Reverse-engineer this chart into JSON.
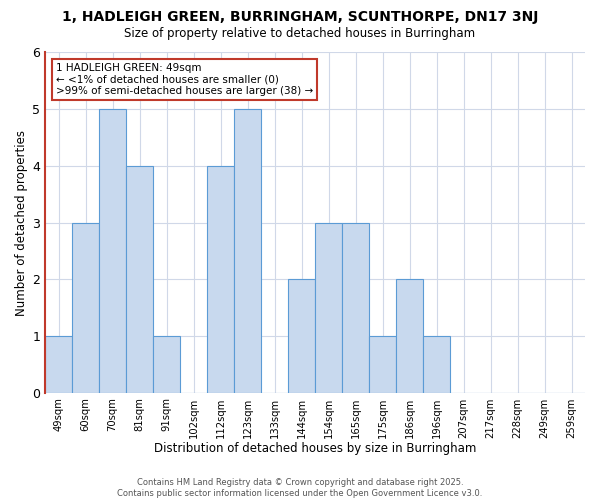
{
  "title": "1, HADLEIGH GREEN, BURRINGHAM, SCUNTHORPE, DN17 3NJ",
  "subtitle": "Size of property relative to detached houses in Burringham",
  "xlabel": "Distribution of detached houses by size in Burringham",
  "ylabel": "Number of detached properties",
  "bar_color": "#c8d9ee",
  "bar_edge_color": "#5b9bd5",
  "highlight_edge_color": "#c0392b",
  "categories": [
    "49sqm",
    "60sqm",
    "70sqm",
    "81sqm",
    "91sqm",
    "102sqm",
    "112sqm",
    "123sqm",
    "133sqm",
    "144sqm",
    "154sqm",
    "165sqm",
    "175sqm",
    "186sqm",
    "196sqm",
    "207sqm",
    "217sqm",
    "228sqm",
    "249sqm",
    "259sqm"
  ],
  "values": [
    1,
    3,
    5,
    4,
    1,
    0,
    4,
    5,
    0,
    2,
    3,
    3,
    1,
    2,
    1,
    0,
    0,
    0,
    0,
    0
  ],
  "highlight_index": 0,
  "ylim": [
    0,
    6
  ],
  "yticks": [
    0,
    1,
    2,
    3,
    4,
    5,
    6
  ],
  "annotation_title": "1 HADLEIGH GREEN: 49sqm",
  "annotation_line1": "← <1% of detached houses are smaller (0)",
  "annotation_line2": ">99% of semi-detached houses are larger (38) →",
  "footer_line1": "Contains HM Land Registry data © Crown copyright and database right 2025.",
  "footer_line2": "Contains public sector information licensed under the Open Government Licence v3.0.",
  "background_color": "#ffffff",
  "grid_color": "#d0d8e8"
}
